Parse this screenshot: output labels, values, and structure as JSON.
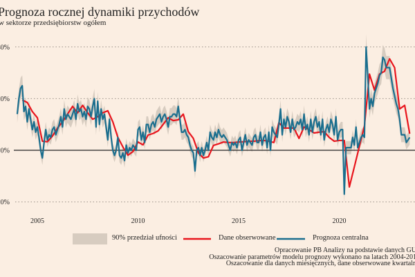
{
  "title": "Prognoza rocznej dynamiki przychodów",
  "subtitle": "w sektorze przedsiębiorstw ogółem",
  "legend": {
    "band": "90% przedział ufności",
    "observed": "Dane obserwowane",
    "forecast": "Prognoza centralna"
  },
  "source_lines": [
    "Opracowanie PB Analizy na podstawie danych GU",
    "Oszacowanie parametrów modelu prognozy wykonano na latach 2004-201",
    "Oszacowanie dla danych miesięcznych, dane obserwowane kwartaln"
  ],
  "colors": {
    "background": "#fbeee2",
    "observed": "#e8141c",
    "forecast": "#1a6e8e",
    "band": "#d7ccc0"
  },
  "chart_data": {
    "type": "line",
    "xlim": [
      2004,
      2023.6
    ],
    "ylim": [
      -22,
      42
    ],
    "x_ticks": [
      2005,
      2010,
      2015,
      2020
    ],
    "x_tick_labels": [
      "2005",
      "2010",
      "2015",
      "2020"
    ],
    "y_ticks": [
      -20,
      0,
      20,
      40
    ],
    "y_tick_labels": [
      "-20%",
      "0%",
      "20%",
      "40%"
    ],
    "grid": "horizontal dotted",
    "legend_position": "bottom",
    "series": [
      {
        "name": "Dane obserwowane",
        "freq": "quarterly",
        "start": "2004-Q1",
        "values": [
          19.5,
          18.5,
          15,
          12.6,
          3.5,
          3.3,
          5.5,
          8.6,
          11,
          14,
          17,
          14.5,
          17.4,
          14.5,
          12,
          13,
          14.5,
          15.3,
          11,
          5,
          1.3,
          -1.9,
          -0.5,
          3.2,
          2.1,
          5.9,
          6.5,
          7.5,
          10,
          12.6,
          11.5,
          11.8,
          14,
          7.2,
          4.6,
          -1,
          -3,
          -2.5,
          1.9,
          2.5,
          3.2,
          3,
          3,
          3.2,
          3.3,
          3.5,
          3.5,
          3.7,
          3.8,
          3.5,
          3,
          10.7,
          8.6,
          8.6,
          8.6,
          4.6,
          9,
          8,
          6.7,
          7,
          7.2,
          5,
          3.5,
          3.8,
          3.8,
          -14.2,
          -6.4,
          1.5,
          9.4,
          29.5,
          23.3,
          29.5,
          30.6,
          35.4,
          32,
          16,
          17.4,
          6.4
        ]
      },
      {
        "name": "Prognoza centralna",
        "freq": "monthly",
        "start": "2004-01",
        "ci_90_halfwidth": 2.5,
        "values": [
          14,
          20,
          24,
          25,
          15,
          17,
          11,
          16,
          12,
          8,
          11,
          7,
          9,
          5,
          0,
          -3,
          3,
          8,
          4,
          6,
          5,
          8,
          9,
          6,
          8,
          10,
          13,
          9,
          16,
          12,
          14,
          13,
          12,
          14,
          16,
          12,
          18,
          15,
          16,
          13,
          15,
          12,
          17,
          16,
          13,
          17,
          20,
          9,
          19,
          10,
          16,
          12,
          14,
          9,
          4,
          12,
          5,
          0,
          -2,
          0,
          5,
          -2,
          -3,
          -1,
          -4,
          2,
          -1,
          1,
          0,
          2,
          1,
          0,
          8,
          9,
          4,
          7,
          3,
          10,
          10,
          7,
          10,
          11,
          9,
          12,
          13,
          14,
          11,
          13,
          14,
          12,
          9,
          13,
          13,
          14,
          14,
          13,
          17,
          12,
          7,
          7,
          8,
          6,
          5,
          2,
          0,
          -1,
          -8,
          0,
          1,
          -2,
          1,
          -2,
          0,
          3,
          0,
          7,
          5,
          4,
          7,
          5,
          8,
          6,
          5,
          6,
          5,
          4,
          2,
          0,
          3,
          2,
          3,
          1,
          4,
          5,
          0,
          3,
          6,
          2,
          4,
          3,
          2,
          5,
          6,
          3,
          3,
          7,
          2,
          5,
          6,
          1,
          7,
          0,
          9,
          7,
          6,
          5,
          10,
          16,
          6,
          12,
          9,
          13,
          11,
          7,
          12,
          8,
          9,
          11,
          10,
          12,
          8,
          14,
          8,
          10,
          6,
          12,
          7,
          11,
          13,
          9,
          11,
          6,
          12,
          4,
          8,
          10,
          7,
          12,
          10,
          6,
          13,
          4,
          7,
          8,
          8,
          -17,
          1,
          1,
          1,
          1,
          5,
          2,
          9,
          1,
          3,
          5,
          6,
          5,
          40,
          29,
          16,
          20,
          17,
          22,
          24,
          26,
          29,
          30,
          36,
          35,
          32,
          32,
          32,
          28,
          24,
          21,
          18,
          16,
          12,
          6,
          6,
          6,
          3,
          4,
          5
        ]
      }
    ]
  }
}
